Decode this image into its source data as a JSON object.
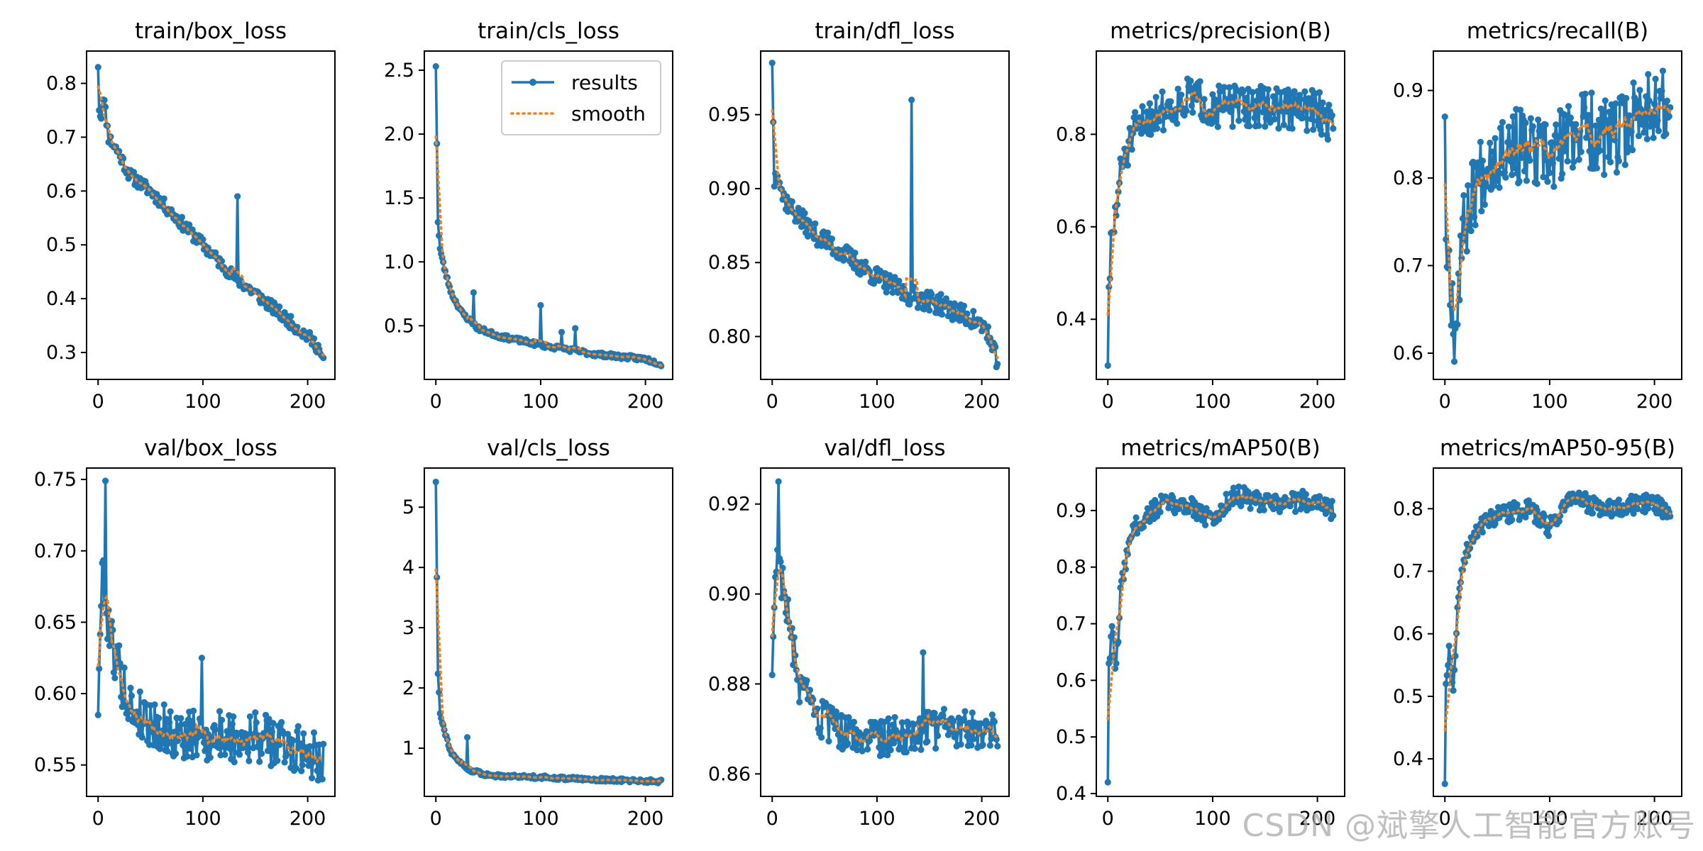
{
  "figure": {
    "legend": {
      "series": [
        "results",
        "smooth"
      ],
      "location": "upper right of second panel"
    },
    "colors": {
      "results": "#1f77b4",
      "smooth": "#ff7f0e",
      "axes": "#000000",
      "background": "#ffffff"
    },
    "watermark": "CSDN @斌擎人工智能官方账号"
  },
  "chart_data": [
    {
      "type": "line",
      "title": "train/box_loss",
      "xlim": [
        -11,
        226
      ],
      "ylim": [
        0.25,
        0.86
      ],
      "xticks": [
        0,
        100,
        200
      ],
      "yticks": [
        0.3,
        0.4,
        0.5,
        0.6,
        0.7,
        0.8
      ],
      "ytick_labels": [
        "0.3",
        "0.4",
        "0.5",
        "0.6",
        "0.7",
        "0.8"
      ],
      "anchors": [
        [
          0,
          0.83
        ],
        [
          1,
          0.75
        ],
        [
          3,
          0.74
        ],
        [
          5,
          0.78
        ],
        [
          10,
          0.7
        ],
        [
          20,
          0.67
        ],
        [
          30,
          0.63
        ],
        [
          50,
          0.6
        ],
        [
          75,
          0.55
        ],
        [
          100,
          0.5
        ],
        [
          130,
          0.44
        ],
        [
          150,
          0.41
        ],
        [
          175,
          0.37
        ],
        [
          200,
          0.33
        ],
        [
          210,
          0.31
        ],
        [
          215,
          0.28
        ]
      ],
      "noise": 0.012,
      "spikes": [
        [
          133,
          0.59
        ]
      ],
      "seed": 11
    },
    {
      "type": "line",
      "title": "train/cls_loss",
      "xlim": [
        -11,
        226
      ],
      "ylim": [
        0.08,
        2.65
      ],
      "xticks": [
        0,
        100,
        200
      ],
      "yticks": [
        0.5,
        1.0,
        1.5,
        2.0,
        2.5
      ],
      "ytick_labels": [
        "0.5",
        "1.0",
        "1.5",
        "2.0",
        "2.5"
      ],
      "anchors": [
        [
          0,
          2.53
        ],
        [
          2,
          1.32
        ],
        [
          4,
          1.1
        ],
        [
          8,
          0.95
        ],
        [
          15,
          0.75
        ],
        [
          25,
          0.6
        ],
        [
          40,
          0.48
        ],
        [
          60,
          0.42
        ],
        [
          100,
          0.35
        ],
        [
          150,
          0.28
        ],
        [
          200,
          0.24
        ],
        [
          215,
          0.2
        ]
      ],
      "noise": 0.018,
      "spikes": [
        [
          36,
          0.76
        ],
        [
          100,
          0.66
        ],
        [
          120,
          0.45
        ],
        [
          133,
          0.48
        ]
      ],
      "seed": 23
    },
    {
      "type": "line",
      "title": "train/dfl_loss",
      "xlim": [
        -11,
        226
      ],
      "ylim": [
        0.771,
        0.993
      ],
      "xticks": [
        0,
        100,
        200
      ],
      "yticks": [
        0.8,
        0.85,
        0.9,
        0.95
      ],
      "ytick_labels": [
        "0.80",
        "0.85",
        "0.90",
        "0.95"
      ],
      "anchors": [
        [
          0,
          0.985
        ],
        [
          2,
          0.905
        ],
        [
          5,
          0.915
        ],
        [
          10,
          0.895
        ],
        [
          20,
          0.885
        ],
        [
          40,
          0.87
        ],
        [
          60,
          0.86
        ],
        [
          80,
          0.85
        ],
        [
          100,
          0.84
        ],
        [
          130,
          0.828
        ],
        [
          160,
          0.822
        ],
        [
          190,
          0.812
        ],
        [
          205,
          0.805
        ],
        [
          210,
          0.79
        ],
        [
          215,
          0.785
        ]
      ],
      "noise": 0.007,
      "spikes": [
        [
          133,
          0.96
        ]
      ],
      "seed": 37
    },
    {
      "type": "line",
      "title": "metrics/precision(B)",
      "xlim": [
        -11,
        226
      ],
      "ylim": [
        0.27,
        0.98
      ],
      "xticks": [
        0,
        100,
        200
      ],
      "yticks": [
        0.4,
        0.6,
        0.8
      ],
      "ytick_labels": [
        "0.4",
        "0.6",
        "0.8"
      ],
      "anchors": [
        [
          0,
          0.3
        ],
        [
          1,
          0.47
        ],
        [
          3,
          0.55
        ],
        [
          6,
          0.6
        ],
        [
          10,
          0.68
        ],
        [
          15,
          0.75
        ],
        [
          25,
          0.8
        ],
        [
          40,
          0.84
        ],
        [
          60,
          0.86
        ],
        [
          80,
          0.88
        ],
        [
          100,
          0.86
        ],
        [
          150,
          0.86
        ],
        [
          200,
          0.85
        ],
        [
          215,
          0.82
        ]
      ],
      "noise": 0.045,
      "spikes": [],
      "seed": 51
    },
    {
      "type": "line",
      "title": "metrics/recall(B)",
      "xlim": [
        -11,
        226
      ],
      "ylim": [
        0.57,
        0.945
      ],
      "xticks": [
        0,
        100,
        200
      ],
      "yticks": [
        0.6,
        0.7,
        0.8,
        0.9
      ],
      "ytick_labels": [
        "0.6",
        "0.7",
        "0.8",
        "0.9"
      ],
      "anchors": [
        [
          0,
          0.87
        ],
        [
          1,
          0.73
        ],
        [
          4,
          0.7
        ],
        [
          7,
          0.66
        ],
        [
          10,
          0.62
        ],
        [
          15,
          0.72
        ],
        [
          25,
          0.78
        ],
        [
          40,
          0.82
        ],
        [
          60,
          0.84
        ],
        [
          80,
          0.83
        ],
        [
          100,
          0.82
        ],
        [
          130,
          0.86
        ],
        [
          160,
          0.84
        ],
        [
          180,
          0.87
        ],
        [
          200,
          0.89
        ],
        [
          215,
          0.87
        ]
      ],
      "noise": 0.045,
      "spikes": [],
      "seed": 67
    },
    {
      "type": "line",
      "title": "val/box_loss",
      "xlim": [
        -11,
        226
      ],
      "ylim": [
        0.528,
        0.758
      ],
      "xticks": [
        0,
        100,
        200
      ],
      "yticks": [
        0.55,
        0.6,
        0.65,
        0.7,
        0.75
      ],
      "ytick_labels": [
        "0.55",
        "0.60",
        "0.65",
        "0.70",
        "0.75"
      ],
      "anchors": [
        [
          0,
          0.585
        ],
        [
          2,
          0.65
        ],
        [
          5,
          0.69
        ],
        [
          8,
          0.66
        ],
        [
          15,
          0.63
        ],
        [
          30,
          0.59
        ],
        [
          50,
          0.58
        ],
        [
          75,
          0.57
        ],
        [
          100,
          0.57
        ],
        [
          150,
          0.57
        ],
        [
          200,
          0.56
        ],
        [
          215,
          0.555
        ]
      ],
      "noise": 0.018,
      "spikes": [
        [
          7,
          0.749
        ],
        [
          99,
          0.625
        ]
      ],
      "seed": 79
    },
    {
      "type": "line",
      "title": "val/cls_loss",
      "xlim": [
        -11,
        226
      ],
      "ylim": [
        0.2,
        5.65
      ],
      "xticks": [
        0,
        100,
        200
      ],
      "yticks": [
        1,
        2,
        3,
        4,
        5
      ],
      "ytick_labels": [
        "1",
        "2",
        "3",
        "4",
        "5"
      ],
      "anchors": [
        [
          0,
          5.42
        ],
        [
          2,
          2.25
        ],
        [
          4,
          1.6
        ],
        [
          8,
          1.3
        ],
        [
          15,
          0.9
        ],
        [
          30,
          0.65
        ],
        [
          50,
          0.55
        ],
        [
          100,
          0.52
        ],
        [
          150,
          0.48
        ],
        [
          215,
          0.45
        ]
      ],
      "noise": 0.03,
      "spikes": [
        [
          30,
          1.18
        ]
      ],
      "seed": 91
    },
    {
      "type": "line",
      "title": "val/dfl_loss",
      "xlim": [
        -11,
        226
      ],
      "ylim": [
        0.855,
        0.928
      ],
      "xticks": [
        0,
        100,
        200
      ],
      "yticks": [
        0.86,
        0.88,
        0.9,
        0.92
      ],
      "ytick_labels": [
        "0.86",
        "0.88",
        "0.90",
        "0.92"
      ],
      "anchors": [
        [
          0,
          0.882
        ],
        [
          2,
          0.899
        ],
        [
          5,
          0.91
        ],
        [
          8,
          0.905
        ],
        [
          15,
          0.895
        ],
        [
          25,
          0.88
        ],
        [
          40,
          0.873
        ],
        [
          60,
          0.87
        ],
        [
          80,
          0.868
        ],
        [
          100,
          0.868
        ],
        [
          150,
          0.87
        ],
        [
          200,
          0.87
        ],
        [
          215,
          0.87
        ]
      ],
      "noise": 0.0045,
      "spikes": [
        [
          6,
          0.925
        ],
        [
          144,
          0.887
        ]
      ],
      "seed": 103
    },
    {
      "type": "line",
      "title": "metrics/mAP50(B)",
      "xlim": [
        -11,
        226
      ],
      "ylim": [
        0.395,
        0.975
      ],
      "xticks": [
        0,
        100,
        200
      ],
      "yticks": [
        0.4,
        0.5,
        0.6,
        0.7,
        0.8,
        0.9
      ],
      "ytick_labels": [
        "0.4",
        "0.5",
        "0.6",
        "0.7",
        "0.8",
        "0.9"
      ],
      "anchors": [
        [
          0,
          0.42
        ],
        [
          1,
          0.63
        ],
        [
          4,
          0.68
        ],
        [
          8,
          0.62
        ],
        [
          12,
          0.75
        ],
        [
          20,
          0.85
        ],
        [
          30,
          0.88
        ],
        [
          50,
          0.91
        ],
        [
          80,
          0.91
        ],
        [
          100,
          0.88
        ],
        [
          120,
          0.93
        ],
        [
          150,
          0.91
        ],
        [
          200,
          0.92
        ],
        [
          215,
          0.9
        ]
      ],
      "noise": 0.018,
      "spikes": [],
      "seed": 117
    },
    {
      "type": "line",
      "title": "metrics/mAP50-95(B)",
      "xlim": [
        -11,
        226
      ],
      "ylim": [
        0.34,
        0.865
      ],
      "xticks": [
        0,
        100,
        200
      ],
      "yticks": [
        0.4,
        0.5,
        0.6,
        0.7,
        0.8
      ],
      "ytick_labels": [
        "0.4",
        "0.5",
        "0.6",
        "0.7",
        "0.8"
      ],
      "anchors": [
        [
          0,
          0.36
        ],
        [
          1,
          0.52
        ],
        [
          4,
          0.58
        ],
        [
          8,
          0.5
        ],
        [
          12,
          0.65
        ],
        [
          20,
          0.73
        ],
        [
          30,
          0.77
        ],
        [
          50,
          0.79
        ],
        [
          80,
          0.8
        ],
        [
          100,
          0.77
        ],
        [
          120,
          0.82
        ],
        [
          150,
          0.8
        ],
        [
          200,
          0.81
        ],
        [
          215,
          0.79
        ]
      ],
      "noise": 0.015,
      "spikes": [],
      "seed": 131
    }
  ]
}
